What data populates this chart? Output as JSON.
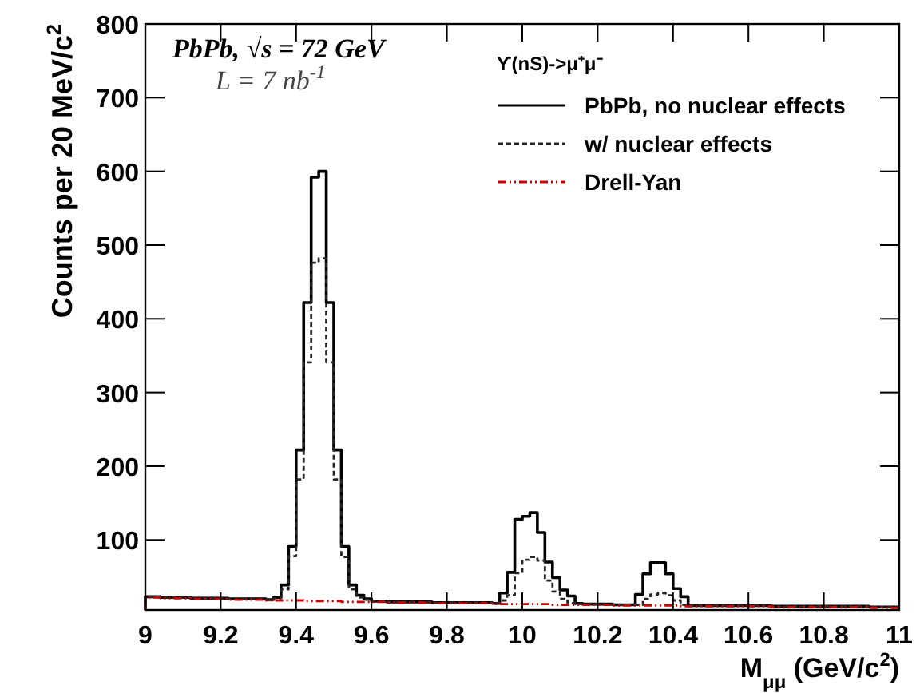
{
  "chart_data": {
    "type": "histogram",
    "xlabel": "M$_{μμ}$ (GeV/c$^{2}$)",
    "ylabel": "Counts per 20 MeV/c$^{2}$",
    "legend_title": "ϒ(nS)->μ⁺μ⁻",
    "legend": "top right",
    "grid": false,
    "annotations": [
      "PbPb,  √s = 72 GeV",
      "L = 7 nb$^{-1}$"
    ],
    "bins": [
      9,
      9.02,
      9.04,
      9.06,
      9.08,
      9.1,
      9.12,
      9.14,
      9.16,
      9.18,
      9.2,
      9.22,
      9.24,
      9.26,
      9.28,
      9.3,
      9.32,
      9.34,
      9.36,
      9.38,
      9.4,
      9.42,
      9.44,
      9.46,
      9.48,
      9.5,
      9.52,
      9.54,
      9.56,
      9.58,
      9.6,
      9.62,
      9.64,
      9.66,
      9.68,
      9.7,
      9.72,
      9.74,
      9.76,
      9.78,
      9.8,
      9.82,
      9.84,
      9.86,
      9.88,
      9.9,
      9.92,
      9.94,
      9.96,
      9.98,
      10,
      10.02,
      10.04,
      10.06,
      10.08,
      10.1,
      10.12,
      10.14,
      10.16,
      10.18,
      10.2,
      10.22,
      10.24,
      10.26,
      10.28,
      10.3,
      10.32,
      10.34,
      10.36,
      10.38,
      10.4,
      10.42,
      10.44,
      10.46,
      10.48,
      10.5,
      10.52,
      10.54,
      10.56,
      10.58,
      10.6,
      10.62,
      10.64,
      10.66,
      10.68,
      10.7,
      10.72,
      10.74,
      10.76,
      10.78,
      10.8,
      10.82,
      10.84,
      10.86,
      10.88,
      10.9,
      10.92,
      10.94,
      10.96,
      10.98,
      11
    ],
    "xlim": [
      9,
      11
    ],
    "xticks": [
      9,
      9.2,
      9.4,
      9.6,
      9.8,
      10,
      10.2,
      10.4,
      10.6,
      10.8,
      11
    ],
    "ylim": [
      5,
      800
    ],
    "yticks": [
      100,
      200,
      300,
      400,
      500,
      600,
      700,
      800
    ],
    "series": [
      {
        "name": "PbPb, no nuclear effects",
        "color": "#000000",
        "line_style": "solid",
        "values": [
          23,
          23,
          22,
          22,
          22,
          22,
          21,
          21,
          21,
          21,
          21,
          20,
          20,
          20,
          20,
          20,
          19,
          22,
          39,
          91,
          222,
          422,
          592,
          600,
          422,
          222,
          91,
          39,
          25,
          20,
          17,
          17,
          16,
          16,
          16,
          16,
          16,
          16,
          15,
          15,
          15,
          15,
          15,
          15,
          15,
          15,
          14,
          28,
          56,
          128,
          132,
          137,
          110,
          70,
          49,
          32,
          24,
          14,
          13,
          13,
          13,
          13,
          12,
          12,
          12,
          26,
          54,
          69,
          69,
          54,
          34,
          23,
          11,
          11,
          11,
          11,
          11,
          11,
          11,
          11,
          11,
          11,
          11,
          10,
          10,
          10,
          10,
          10,
          10,
          10,
          10,
          10,
          10,
          10,
          10,
          10,
          9,
          9,
          9,
          9
        ]
      },
      {
        "name": "w/ nuclear effects",
        "color": "#262626",
        "line_style": "dashed",
        "values": [
          23,
          23,
          22,
          22,
          22,
          22,
          21,
          21,
          21,
          21,
          21,
          20,
          20,
          20,
          20,
          20,
          19,
          21,
          33,
          78,
          182,
          341,
          476,
          482,
          341,
          182,
          77,
          33,
          22,
          19,
          17,
          17,
          16,
          16,
          16,
          16,
          16,
          16,
          15,
          15,
          15,
          15,
          15,
          15,
          15,
          15,
          14,
          18,
          25,
          55,
          73,
          77,
          72,
          45,
          30,
          20,
          14,
          13,
          13,
          13,
          13,
          13,
          12,
          12,
          12,
          12,
          20,
          26,
          28,
          25,
          18,
          12,
          11,
          11,
          11,
          11,
          11,
          11,
          11,
          11,
          11,
          11,
          11,
          10,
          10,
          10,
          10,
          10,
          10,
          10,
          10,
          10,
          10,
          10,
          10,
          10,
          9,
          9,
          9,
          9
        ]
      },
      {
        "name": "Drell-Yan",
        "color": "#cc0000",
        "line_style": "dashdot",
        "values": [
          22,
          22,
          21,
          21,
          21,
          21,
          20,
          20,
          20,
          20,
          20,
          19,
          19,
          19,
          19,
          19,
          18,
          18,
          18,
          18,
          18,
          17,
          17,
          17,
          17,
          17,
          16,
          16,
          16,
          16,
          16,
          16,
          15,
          15,
          15,
          15,
          15,
          15,
          14,
          14,
          14,
          14,
          14,
          14,
          14,
          14,
          13,
          13,
          13,
          13,
          13,
          13,
          13,
          13,
          12,
          12,
          12,
          12,
          12,
          12,
          12,
          12,
          11,
          11,
          11,
          11,
          11,
          11,
          11,
          11,
          11,
          10,
          10,
          10,
          10,
          10,
          10,
          10,
          10,
          10,
          10,
          10,
          10,
          9,
          9,
          9,
          9,
          9,
          9,
          9,
          9,
          9,
          9,
          9,
          9,
          9,
          8,
          8,
          8,
          8
        ]
      }
    ]
  }
}
